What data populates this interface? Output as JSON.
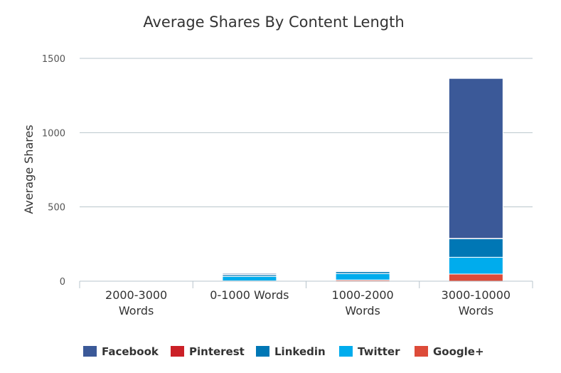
{
  "chart_data": {
    "type": "bar",
    "stacked": true,
    "title": "Average Shares By Content Length",
    "ylabel": "Average Shares",
    "xlabel": "",
    "ylim": [
      0,
      1500
    ],
    "yticks": [
      "0",
      "500",
      "1000",
      "1500"
    ],
    "grid": true,
    "legend_position": "bottom",
    "categories": [
      [
        "2000-3000",
        "Words"
      ],
      [
        "0-1000 Words"
      ],
      [
        "1000-2000",
        "Words"
      ],
      [
        "3000-10000",
        "Words"
      ]
    ],
    "series": [
      {
        "name": "Google+",
        "color": "#dd4b39",
        "values": [
          0,
          2,
          8,
          48
        ]
      },
      {
        "name": "Twitter",
        "color": "#00aced",
        "values": [
          0,
          30,
          43,
          113
        ]
      },
      {
        "name": "Linkedin",
        "color": "#0077b5",
        "values": [
          0,
          12,
          14,
          125
        ]
      },
      {
        "name": "Pinterest",
        "color": "#cb2027",
        "values": [
          0,
          1,
          1,
          2
        ]
      },
      {
        "name": "Facebook",
        "color": "#3b5998",
        "values": [
          0,
          7,
          5,
          1077
        ]
      }
    ],
    "legend_order": [
      "Facebook",
      "Pinterest",
      "Linkedin",
      "Twitter",
      "Google+"
    ]
  }
}
